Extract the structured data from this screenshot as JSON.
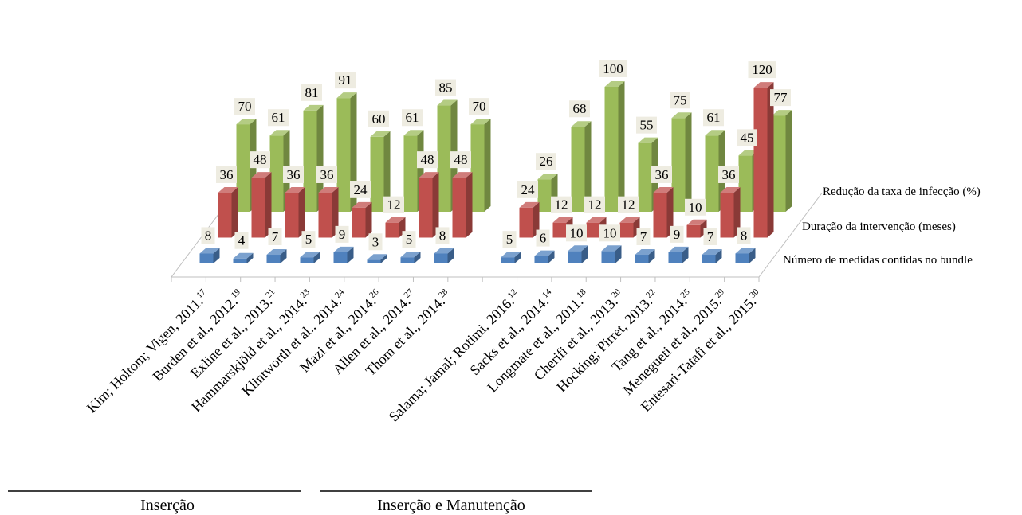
{
  "chart_data": {
    "type": "bar",
    "title": "",
    "categories": [
      {
        "label": "Kim; Holtom; Vigen, 2011.",
        "ref": "17"
      },
      {
        "label": "Burden et al., 2012.",
        "ref": "19"
      },
      {
        "label": "Exline et al., 2013.",
        "ref": "21"
      },
      {
        "label": "Hammarskjöld et al., 2014.",
        "ref": "23"
      },
      {
        "label": "Klintworth et al., 2014.",
        "ref": "24"
      },
      {
        "label": "Mazi et al., 2014.",
        "ref": "26"
      },
      {
        "label": "Allen et al., 2014.",
        "ref": "27"
      },
      {
        "label": "Thom et al., 2014.",
        "ref": "28"
      },
      {
        "label": "Salama; Jamal; Rotimi, 2016.",
        "ref": "12"
      },
      {
        "label": "Sacks et al., 2014.",
        "ref": "14"
      },
      {
        "label": "Longmate et al., 2011.",
        "ref": "18"
      },
      {
        "label": "Cherifi et al., 2013.",
        "ref": "20"
      },
      {
        "label": "Hocking; Pirret, 2013.",
        "ref": "22"
      },
      {
        "label": "Tang et al., 2014.",
        "ref": "25"
      },
      {
        "label": "Menegueti et al., 2015.",
        "ref": "29"
      },
      {
        "label": "Entesari-Tatafi et al., 2015.",
        "ref": "30"
      }
    ],
    "series": [
      {
        "name": "Número de medidas contidas no bundle",
        "color": "#4f81bd",
        "values": [
          8,
          4,
          7,
          5,
          9,
          3,
          5,
          8,
          5,
          6,
          10,
          10,
          7,
          9,
          7,
          8
        ]
      },
      {
        "name": "Duração da intervenção (meses)",
        "color": "#c0504d",
        "values": [
          36,
          48,
          36,
          36,
          24,
          12,
          48,
          48,
          24,
          12,
          12,
          12,
          36,
          10,
          36,
          120
        ]
      },
      {
        "name": "Redução da taxa de infecção (%)",
        "color": "#9bbb59",
        "values": [
          70,
          61,
          81,
          91,
          60,
          61,
          85,
          70,
          26,
          68,
          100,
          55,
          75,
          61,
          45,
          77
        ]
      }
    ],
    "groups": [
      {
        "label": "Inserção",
        "from": 0,
        "to": 7
      },
      {
        "label": "Inserção e Manutenção",
        "from": 8,
        "to": 15
      }
    ],
    "grid": false,
    "legend": "right"
  }
}
